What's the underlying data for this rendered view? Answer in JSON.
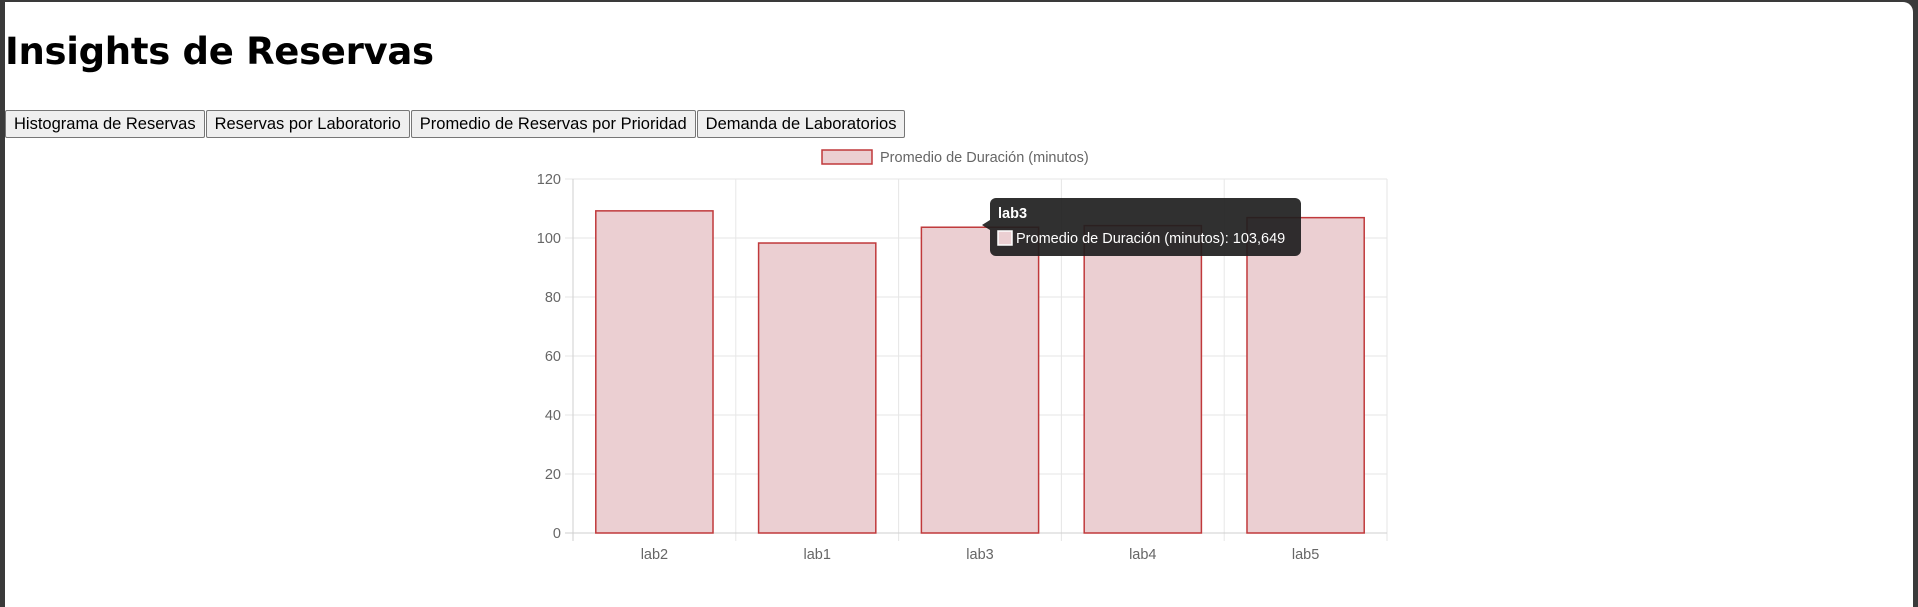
{
  "page": {
    "title": "Insights de Reservas"
  },
  "tabs": [
    {
      "label": "Histograma de Reservas"
    },
    {
      "label": "Reservas por Laboratorio"
    },
    {
      "label": "Promedio de Reservas por Prioridad"
    },
    {
      "label": "Demanda de Laboratorios"
    }
  ],
  "colors": {
    "bar_fill": "#ebcfd2",
    "bar_border": "#c0393b",
    "grid": "#e6e6e6",
    "tick_text": "#666666",
    "tooltip_bg": "#1e1e1e"
  },
  "chart_data": {
    "type": "bar",
    "categories": [
      "lab2",
      "lab1",
      "lab3",
      "lab4",
      "lab5"
    ],
    "series": [
      {
        "name": "Promedio de Duración (minutos)",
        "values": [
          109.2,
          98.3,
          103.649,
          104.2,
          106.9
        ]
      }
    ],
    "ylim": [
      0,
      120
    ],
    "yticks": [
      "0",
      "20",
      "40",
      "60",
      "80",
      "100",
      "120"
    ],
    "grid": true,
    "legend_position": "top-center"
  },
  "tooltip": {
    "title": "lab3",
    "label": "Promedio de Duración (minutos): 103,649"
  }
}
